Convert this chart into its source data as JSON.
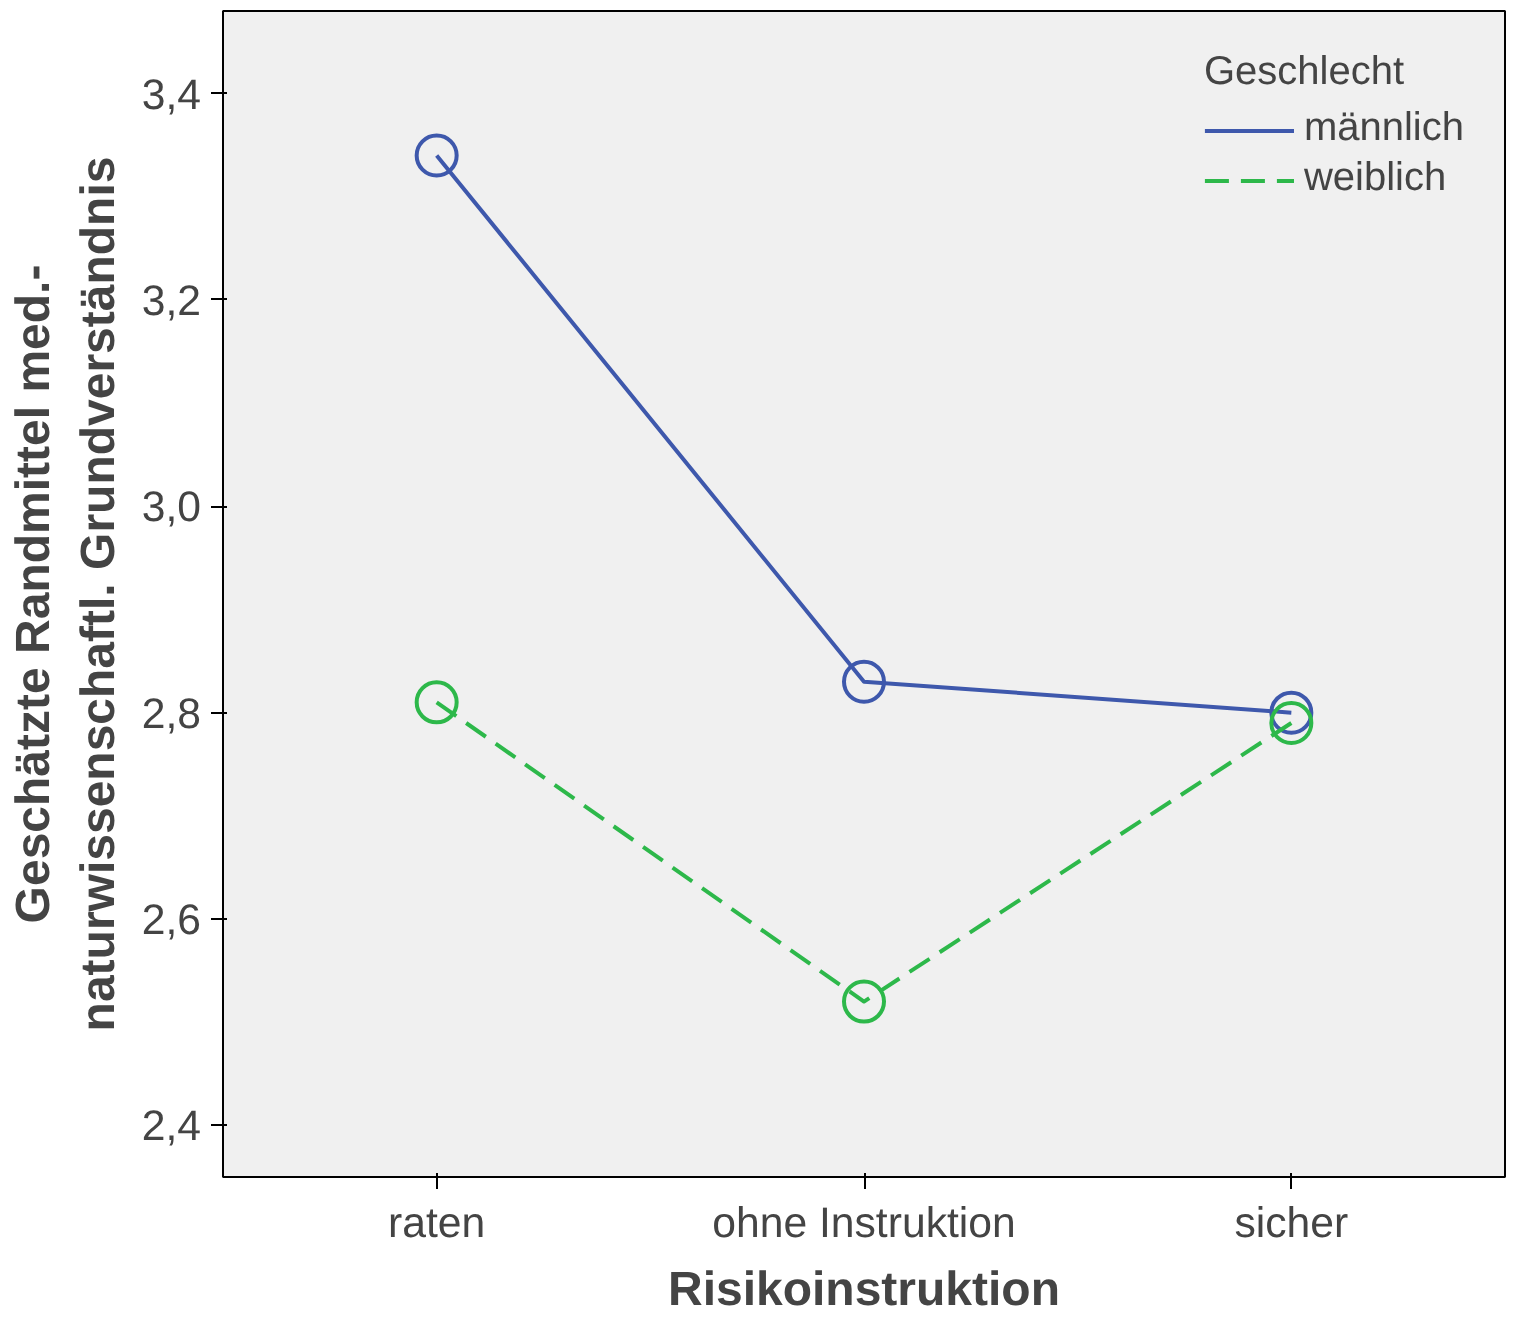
{
  "chart_data": {
    "type": "line",
    "xlabel": "Risikoinstruktion",
    "ylabel": "Geschätzte Randmittel med.-\nnaturwissenschaftl. Grundverständnis",
    "legend_title": "Geschlecht",
    "categories": [
      "raten",
      "ohne Instruktion",
      "sicher"
    ],
    "series": [
      {
        "name": "männlich",
        "color": "#3e58ac",
        "line_style": "solid",
        "values": [
          3.34,
          2.83,
          2.8
        ]
      },
      {
        "name": "weiblich",
        "color": "#2db84a",
        "line_style": "dashed",
        "values": [
          2.81,
          2.52,
          2.79
        ]
      }
    ],
    "ylim": [
      2.35,
      3.48
    ],
    "yticks": [
      {
        "value": 2.4,
        "label": "2,4"
      },
      {
        "value": 2.6,
        "label": "2,6"
      },
      {
        "value": 2.8,
        "label": "2,8"
      },
      {
        "value": 3.0,
        "label": "3,0"
      },
      {
        "value": 3.2,
        "label": "3,2"
      },
      {
        "value": 3.4,
        "label": "3,4"
      }
    ],
    "marker": "circle",
    "grid": false,
    "legend": "top right"
  }
}
